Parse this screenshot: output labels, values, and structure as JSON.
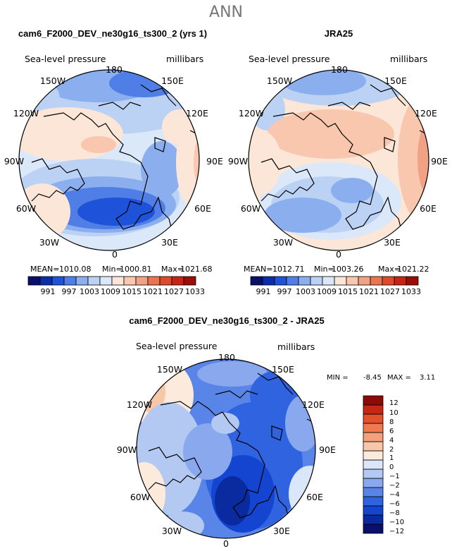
{
  "page_title": "ANN",
  "chart_data": [
    {
      "type": "polar-contour-map",
      "title": "cam6_F2000_DEV_ne30g16_ts300_2 (yrs 1)",
      "field_label": "Sea-level pressure",
      "units_label": "millibars",
      "longitude_labels": [
        "180",
        "150E",
        "120E",
        "90E",
        "60E",
        "30E",
        "0",
        "30W",
        "60W",
        "90W",
        "120W",
        "150W"
      ],
      "stats": {
        "mean_label": "MEAN=",
        "mean": "1010.08",
        "min_label": "Min=",
        "min": "1000.81",
        "max_label": "Max=",
        "max": "1021.68"
      },
      "colorbar_levels": [
        "991",
        "997",
        "1003",
        "1009",
        "1015",
        "1021",
        "1027",
        "1033"
      ]
    },
    {
      "type": "polar-contour-map",
      "title": "JRA25",
      "field_label": "Sea-level pressure",
      "units_label": "millibars",
      "longitude_labels": [
        "180",
        "150E",
        "120E",
        "90E",
        "60E",
        "30E",
        "0",
        "30W",
        "60W",
        "90W",
        "120W",
        "150W"
      ],
      "stats": {
        "mean_label": "MEAN=",
        "mean": "1012.71",
        "min_label": "Min=",
        "min": "1003.26",
        "max_label": "Max=",
        "max": "1021.22"
      },
      "colorbar_levels": [
        "991",
        "997",
        "1003",
        "1009",
        "1015",
        "1021",
        "1027",
        "1033"
      ]
    },
    {
      "type": "polar-contour-map",
      "title": "cam6_F2000_DEV_ne30g16_ts300_2 - JRA25",
      "field_label": "Sea-level pressure",
      "units_label": "millibars",
      "longitude_labels": [
        "180",
        "150E",
        "120E",
        "90E",
        "60E",
        "30E",
        "0",
        "30W",
        "60W",
        "90W",
        "120W",
        "150W"
      ],
      "stats": {
        "min_label": "MIN =",
        "min": "-8.45",
        "max_label": "MAX =",
        "max": "3.11"
      },
      "colorbar_levels": [
        "12",
        "10",
        "8",
        "6",
        "4",
        "2",
        "1",
        "0",
        "−1",
        "−2",
        "−4",
        "−6",
        "−8",
        "−10",
        "−12"
      ]
    }
  ],
  "colors": {
    "abs_scale": [
      "#08106b",
      "#0a2ea8",
      "#1e52d8",
      "#4f7fe6",
      "#8aaeee",
      "#bcd2f4",
      "#dbe8fa",
      "#fbe6d8",
      "#f8c7ad",
      "#f2a284",
      "#ea7550",
      "#df4a2a",
      "#c72414",
      "#9c0d0a"
    ],
    "diff_scale": [
      "#08106b",
      "#0a2aa0",
      "#1345d0",
      "#2f63e0",
      "#5a85e8",
      "#8aa8ee",
      "#b3c9f2",
      "#dae6fa",
      "#fcebdc",
      "#f8c7a8",
      "#f4a07c",
      "#ef7a4f",
      "#e4502a",
      "#c42814",
      "#8c0a08"
    ]
  }
}
